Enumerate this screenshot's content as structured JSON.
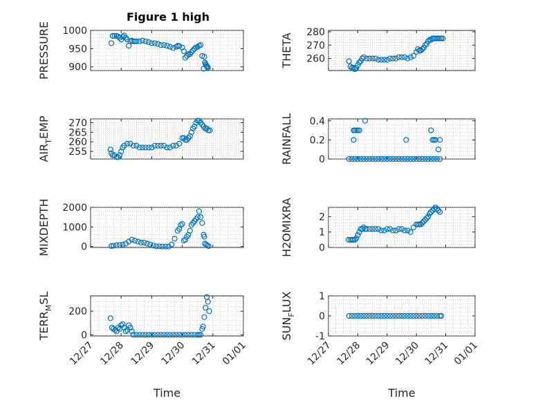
{
  "figure_title": "Figure 1 high",
  "colors": {
    "marker": "#0072BD",
    "axes": "#262626",
    "grid": "#b0b0b0"
  },
  "chart_data": [
    {
      "type": "scatter",
      "ylabel": "PRESSURE",
      "title": "Figure 1 high",
      "ylim": [
        890,
        1000
      ],
      "yticks": [
        900,
        950,
        1000
      ],
      "xlim": [
        0,
        5
      ],
      "xticks": [
        0,
        1,
        2,
        3,
        4,
        5
      ],
      "xticklabels": [],
      "xlabel": "",
      "grid": true,
      "series": [
        {
          "x": [
            0.68,
            0.72,
            0.78,
            0.85,
            0.9,
            0.95,
            1.0,
            1.05,
            1.1,
            1.15,
            1.2,
            1.25,
            1.3,
            1.35,
            1.4,
            1.45,
            1.5,
            1.6,
            1.7,
            1.8,
            1.9,
            2.0,
            2.1,
            2.2,
            2.3,
            2.4,
            2.5,
            2.6,
            2.7,
            2.8,
            2.85,
            2.9,
            3.0,
            3.05,
            3.1,
            3.15,
            3.2,
            3.25,
            3.3,
            3.35,
            3.4,
            3.45,
            3.5,
            3.55,
            3.6,
            3.65,
            3.7,
            3.72,
            3.74,
            3.76,
            3.78,
            3.8,
            3.82,
            3.84
          ],
          "y": [
            965,
            985,
            985,
            985,
            983,
            980,
            975,
            983,
            986,
            980,
            975,
            958,
            970,
            972,
            970,
            970,
            970,
            970,
            972,
            970,
            968,
            965,
            965,
            963,
            960,
            960,
            958,
            955,
            952,
            955,
            958,
            957,
            953,
            943,
            925,
            930,
            935,
            935,
            940,
            945,
            950,
            953,
            955,
            958,
            960,
            930,
            895,
            928,
            912,
            908,
            905,
            902,
            900,
            898
          ]
        }
      ]
    },
    {
      "type": "scatter",
      "ylabel": "THETA",
      "ylim": [
        251,
        281
      ],
      "yticks": [
        260,
        270,
        280
      ],
      "xlim": [
        0,
        5
      ],
      "xticks": [
        0,
        1,
        2,
        3,
        4,
        5
      ],
      "xticklabels": [],
      "xlabel": "",
      "grid": true,
      "series": [
        {
          "x": [
            0.7,
            0.75,
            0.8,
            0.85,
            0.9,
            0.95,
            1.0,
            1.05,
            1.1,
            1.15,
            1.2,
            1.3,
            1.4,
            1.5,
            1.6,
            1.7,
            1.8,
            1.9,
            2.0,
            2.1,
            2.2,
            2.3,
            2.4,
            2.5,
            2.6,
            2.7,
            2.8,
            2.9,
            3.0,
            3.05,
            3.1,
            3.15,
            3.2,
            3.25,
            3.3,
            3.35,
            3.4,
            3.45,
            3.5,
            3.55,
            3.6,
            3.65,
            3.7,
            3.75,
            3.8,
            3.85,
            3.9
          ],
          "y": [
            258,
            254,
            253,
            253,
            252,
            253,
            255,
            257,
            258,
            260,
            261,
            260,
            260,
            260,
            260,
            259,
            259,
            259,
            259,
            260,
            260,
            260,
            261,
            261,
            261,
            260,
            261,
            262,
            265,
            267,
            266,
            266,
            267,
            268,
            270,
            271,
            273,
            274,
            274,
            275,
            275,
            275,
            275,
            275,
            275,
            275,
            275
          ]
        }
      ]
    },
    {
      "type": "scatter",
      "ylabel": "AIR_TEMP",
      "ylim": [
        251,
        272
      ],
      "yticks": [
        255,
        260,
        265,
        270
      ],
      "xlim": [
        0,
        5
      ],
      "xticks": [
        0,
        1,
        2,
        3,
        4,
        5
      ],
      "xticklabels": [],
      "xlabel": "",
      "grid": true,
      "series": [
        {
          "x": [
            0.65,
            0.68,
            0.72,
            0.78,
            0.85,
            0.9,
            0.95,
            1.0,
            1.05,
            1.1,
            1.2,
            1.3,
            1.4,
            1.5,
            1.6,
            1.7,
            1.8,
            1.9,
            2.0,
            2.1,
            2.2,
            2.3,
            2.4,
            2.5,
            2.6,
            2.7,
            2.8,
            2.9,
            3.0,
            3.05,
            3.1,
            3.15,
            3.2,
            3.25,
            3.3,
            3.35,
            3.4,
            3.45,
            3.5,
            3.55,
            3.6,
            3.65,
            3.7,
            3.75,
            3.8,
            3.85,
            3.9
          ],
          "y": [
            256,
            254,
            253,
            253,
            252,
            252,
            253,
            255,
            257,
            258,
            259,
            259,
            258,
            258,
            257,
            257,
            257,
            257,
            257,
            258,
            258,
            258,
            258,
            257,
            257,
            258,
            258,
            259,
            262,
            262,
            261,
            261,
            262,
            263,
            265,
            267,
            268,
            270,
            271,
            271,
            270,
            269,
            268,
            267,
            267,
            266,
            266
          ]
        }
      ]
    },
    {
      "type": "scatter",
      "ylabel": "RAINFALL",
      "ylim": [
        0,
        0.42
      ],
      "yticks": [
        0,
        0.2,
        0.4
      ],
      "xlim": [
        0,
        5
      ],
      "xticks": [
        0,
        1,
        2,
        3,
        4,
        5
      ],
      "xticklabels": [],
      "xlabel": "",
      "grid": true,
      "series": [
        {
          "x": [
            0.7,
            0.8,
            0.9,
            1.0,
            1.1,
            1.2,
            1.3,
            1.4,
            1.5,
            1.6,
            1.7,
            1.8,
            1.9,
            2.0,
            2.1,
            2.2,
            2.3,
            2.4,
            2.5,
            2.6,
            2.7,
            2.8,
            2.9,
            3.0,
            3.1,
            3.2,
            3.3,
            3.4,
            3.5,
            3.6,
            3.7,
            3.8,
            0.86,
            0.9,
            0.95,
            1.0,
            1.05,
            1.25,
            0.86,
            2.65,
            3.5,
            3.55,
            3.6,
            3.65,
            3.75,
            3.8
          ],
          "y": [
            0,
            0,
            0,
            0,
            0,
            0,
            0,
            0,
            0,
            0,
            0,
            0,
            0,
            0,
            0,
            0,
            0,
            0,
            0,
            0,
            0,
            0,
            0,
            0,
            0,
            0,
            0,
            0,
            0,
            0,
            0,
            0,
            0.3,
            0.3,
            0.3,
            0.3,
            0.3,
            0.4,
            0.2,
            0.2,
            0.3,
            0.2,
            0.2,
            0.2,
            0.1,
            0.2
          ]
        }
      ]
    },
    {
      "type": "scatter",
      "ylabel": "MIXDEPTH",
      "ylim": [
        -50,
        2000
      ],
      "yticks": [
        0,
        1000,
        2000
      ],
      "xlim": [
        0,
        5
      ],
      "xticks": [
        0,
        1,
        2,
        3,
        4,
        5
      ],
      "xticklabels": [],
      "xlabel": "",
      "grid": true,
      "series": [
        {
          "x": [
            0.68,
            0.75,
            0.85,
            0.95,
            1.05,
            1.15,
            1.25,
            1.35,
            1.45,
            1.55,
            1.65,
            1.75,
            1.85,
            1.95,
            2.05,
            2.15,
            2.25,
            2.35,
            2.45,
            2.55,
            2.65,
            2.75,
            2.85,
            2.9,
            2.95,
            3.0,
            3.05,
            3.1,
            3.15,
            3.2,
            3.25,
            3.3,
            3.35,
            3.4,
            3.45,
            3.5,
            3.55,
            3.6,
            3.65,
            3.7,
            3.72,
            3.74,
            3.78,
            3.82,
            3.86
          ],
          "y": [
            20,
            40,
            60,
            80,
            100,
            150,
            250,
            350,
            300,
            250,
            200,
            200,
            150,
            100,
            50,
            10,
            10,
            0,
            0,
            0,
            100,
            400,
            800,
            900,
            1100,
            1150,
            300,
            350,
            500,
            600,
            800,
            1100,
            1200,
            1300,
            1400,
            1500,
            1800,
            1500,
            1200,
            600,
            500,
            150,
            100,
            50,
            20
          ]
        }
      ]
    },
    {
      "type": "scatter",
      "ylabel": "H2OMIXRA",
      "ylim": [
        0,
        2.6
      ],
      "yticks": [
        0,
        1,
        2
      ],
      "xlim": [
        0,
        5
      ],
      "xticks": [
        0,
        1,
        2,
        3,
        4,
        5
      ],
      "xticklabels": [],
      "xlabel": "",
      "grid": true,
      "series": [
        {
          "x": [
            0.68,
            0.75,
            0.8,
            0.85,
            0.9,
            0.95,
            1.0,
            1.05,
            1.1,
            1.15,
            1.2,
            1.25,
            1.3,
            1.4,
            1.5,
            1.6,
            1.7,
            1.8,
            1.9,
            2.0,
            2.1,
            2.2,
            2.3,
            2.4,
            2.5,
            2.6,
            2.7,
            2.8,
            2.9,
            3.0,
            3.05,
            3.1,
            3.15,
            3.2,
            3.25,
            3.3,
            3.35,
            3.4,
            3.45,
            3.5,
            3.55,
            3.6,
            3.65,
            3.7,
            3.75,
            3.8
          ],
          "y": [
            0.5,
            0.5,
            0.5,
            0.5,
            0.5,
            0.6,
            0.8,
            1.0,
            1.2,
            1.2,
            1.3,
            1.2,
            1.2,
            1.2,
            1.2,
            1.2,
            1.2,
            1.1,
            1.1,
            1.2,
            1.2,
            1.1,
            1.1,
            1.2,
            1.2,
            1.1,
            1.1,
            1.0,
            1.3,
            1.5,
            1.5,
            1.5,
            1.5,
            1.6,
            1.7,
            1.8,
            1.9,
            2.0,
            2.2,
            2.3,
            2.4,
            2.5,
            2.6,
            2.5,
            2.4,
            2.3
          ]
        }
      ]
    },
    {
      "type": "scatter",
      "ylabel": "TERR_MSL",
      "ylim": [
        -10,
        330
      ],
      "yticks": [
        0,
        200
      ],
      "xlim": [
        0,
        5
      ],
      "xticks": [
        0,
        1,
        2,
        3,
        4,
        5
      ],
      "xticklabels": [
        "12/27",
        "12/28",
        "12/29",
        "12/30",
        "12/31",
        "01/01"
      ],
      "xlabel": "Time",
      "grid": true,
      "series": [
        {
          "x": [
            0.65,
            0.7,
            0.75,
            0.8,
            0.85,
            0.9,
            0.95,
            1.0,
            1.05,
            1.1,
            1.15,
            1.2,
            1.25,
            1.3,
            1.35,
            1.4,
            1.5,
            1.6,
            1.7,
            1.8,
            1.9,
            2.0,
            2.1,
            2.2,
            2.3,
            2.4,
            2.5,
            2.6,
            2.7,
            2.8,
            2.9,
            3.0,
            3.1,
            3.2,
            3.3,
            3.4,
            3.5,
            3.55,
            3.6,
            3.65,
            3.68,
            3.72,
            3.76,
            3.8,
            3.84,
            3.88
          ],
          "y": [
            140,
            60,
            50,
            40,
            30,
            60,
            50,
            80,
            90,
            60,
            30,
            40,
            80,
            60,
            30,
            0,
            0,
            0,
            0,
            0,
            0,
            0,
            0,
            0,
            0,
            0,
            0,
            0,
            0,
            0,
            0,
            0,
            0,
            0,
            0,
            0,
            0,
            0,
            0,
            50,
            70,
            150,
            230,
            320,
            280,
            200
          ]
        }
      ]
    },
    {
      "type": "scatter",
      "ylabel": "SUN_FLUX",
      "ylim": [
        -1,
        1
      ],
      "yticks": [
        -1,
        0,
        1
      ],
      "xlim": [
        0,
        5
      ],
      "xticks": [
        0,
        1,
        2,
        3,
        4,
        5
      ],
      "xticklabels": [
        "12/27",
        "12/28",
        "12/29",
        "12/30",
        "12/31",
        "01/01"
      ],
      "xlabel": "Time",
      "grid": true,
      "series": [
        {
          "x": [
            0.7,
            0.8,
            0.9,
            1.0,
            1.1,
            1.2,
            1.3,
            1.4,
            1.5,
            1.6,
            1.7,
            1.8,
            1.9,
            2.0,
            2.1,
            2.2,
            2.3,
            2.4,
            2.5,
            2.6,
            2.7,
            2.8,
            2.9,
            3.0,
            3.1,
            3.2,
            3.3,
            3.4,
            3.5,
            3.6,
            3.7,
            3.8,
            3.85
          ],
          "y": [
            0,
            0,
            0,
            0,
            0,
            0,
            0,
            0,
            0,
            0,
            0,
            0,
            0,
            0,
            0,
            0,
            0,
            0,
            0,
            0,
            0,
            0,
            0,
            0,
            0,
            0,
            0,
            0,
            0,
            0,
            0,
            0,
            0
          ]
        }
      ]
    }
  ]
}
